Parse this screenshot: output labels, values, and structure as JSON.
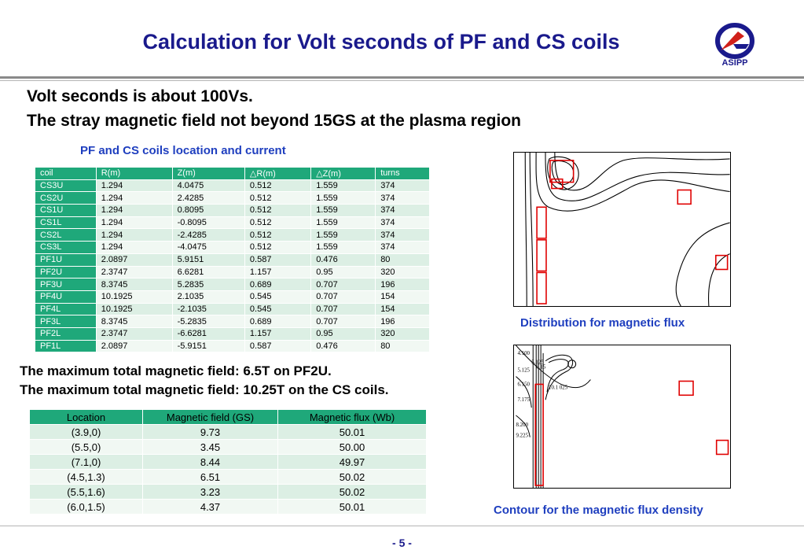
{
  "title": "Calculation for Volt seconds of PF and CS coils",
  "logo_text": "ASIPP",
  "lead": {
    "line1": "Volt seconds is about 100Vs.",
    "line2": "The stray magnetic field not beyond 15GS at the plasma region"
  },
  "coil_table": {
    "caption": "PF and CS coils location and current",
    "headers": [
      "coil",
      "R(m)",
      "Z(m)",
      "△R(m)",
      "△Z(m)",
      "turns"
    ],
    "rows": [
      [
        "CS3U",
        "1.294",
        "4.0475",
        "0.512",
        "1.559",
        "374"
      ],
      [
        "CS2U",
        "1.294",
        "2.4285",
        "0.512",
        "1.559",
        "374"
      ],
      [
        "CS1U",
        "1.294",
        "0.8095",
        "0.512",
        "1.559",
        "374"
      ],
      [
        "CS1L",
        "1.294",
        "-0.8095",
        "0.512",
        "1.559",
        "374"
      ],
      [
        "CS2L",
        "1.294",
        "-2.4285",
        "0.512",
        "1.559",
        "374"
      ],
      [
        "CS3L",
        "1.294",
        "-4.0475",
        "0.512",
        "1.559",
        "374"
      ],
      [
        "PF1U",
        "2.0897",
        "5.9151",
        "0.587",
        "0.476",
        "80"
      ],
      [
        "PF2U",
        "2.3747",
        "6.6281",
        "1.157",
        "0.95",
        "320"
      ],
      [
        "PF3U",
        "8.3745",
        "5.2835",
        "0.689",
        "0.707",
        "196"
      ],
      [
        "PF4U",
        "10.1925",
        "2.1035",
        "0.545",
        "0.707",
        "154"
      ],
      [
        "PF4L",
        "10.1925",
        "-2.1035",
        "0.545",
        "0.707",
        "154"
      ],
      [
        "PF3L",
        "8.3745",
        "-5.2835",
        "0.689",
        "0.707",
        "196"
      ],
      [
        "PF2L",
        "2.3747",
        "-6.6281",
        "1.157",
        "0.95",
        "320"
      ],
      [
        "PF1L",
        "2.0897",
        "-5.9151",
        "0.587",
        "0.476",
        "80"
      ]
    ]
  },
  "max_field": {
    "line1": "The maximum total magnetic field: 6.5T on PF2U.",
    "line2": "The maximum total magnetic field: 10.25T on the CS coils."
  },
  "location_table": {
    "headers": [
      "Location",
      "Magnetic field (GS)",
      "Magnetic flux (Wb)"
    ],
    "rows": [
      [
        "(3.9,0)",
        "9.73",
        "50.01"
      ],
      [
        "(5.5,0)",
        "3.45",
        "50.00"
      ],
      [
        "(7.1,0)",
        "8.44",
        "49.97"
      ],
      [
        "(4.5,1.3)",
        "6.51",
        "50.02"
      ],
      [
        "(5.5,1.6)",
        "3.23",
        "50.02"
      ],
      [
        "(6.0,1.5)",
        "4.37",
        "50.01"
      ]
    ]
  },
  "figure1": {
    "caption": "Distribution for magnetic flux"
  },
  "figure2": {
    "caption": "Contour for the magnetic flux density",
    "contour_labels": [
      "4.100",
      "5.125",
      "6.15",
      "5.125",
      "6.150",
      "10.1 025",
      "7.175",
      "8.200",
      "9.225"
    ]
  },
  "page_number": "-  5 -",
  "colors": {
    "title": "#1a1a8c",
    "caption": "#1f3fbf",
    "table_header": "#1fa87a",
    "coil_box": "#e00000"
  }
}
